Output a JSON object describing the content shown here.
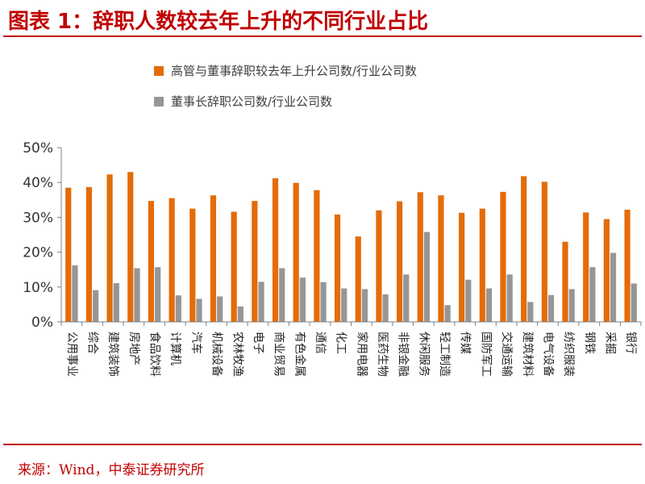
{
  "header": {
    "title": "图表 1：辞职人数较去年上升的不同行业占比"
  },
  "footer": {
    "source": "来源：Wind，中泰证券研究所"
  },
  "colors": {
    "series1": "#E36C0A",
    "series2": "#969696",
    "accent": "#C00000"
  },
  "chart_data": {
    "type": "bar",
    "title": "",
    "xlabel": "",
    "ylabel": "",
    "ylim": [
      0,
      50
    ],
    "yticks": [
      "0%",
      "10%",
      "20%",
      "30%",
      "40%",
      "50%"
    ],
    "grid": false,
    "legend": "top",
    "categories": [
      "公用事业",
      "综合",
      "建筑装饰",
      "房地产",
      "食品饮料",
      "计算机",
      "汽车",
      "机械设备",
      "农林牧渔",
      "电子",
      "商业贸易",
      "有色金属",
      "通信",
      "化工",
      "家用电器",
      "医药生物",
      "非银金融",
      "休闲服务",
      "轻工制造",
      "传媒",
      "国防军工",
      "交通运输",
      "建筑材料",
      "电气设备",
      "纺织服装",
      "钢铁",
      "采掘",
      "银行"
    ],
    "series": [
      {
        "name": "高管与董事辞职较去年上升公司数/行业公司数",
        "values": [
          38.5,
          38.7,
          42.3,
          43.0,
          34.7,
          35.5,
          32.5,
          36.3,
          31.6,
          34.7,
          41.2,
          39.9,
          37.8,
          30.8,
          24.5,
          32.0,
          34.6,
          37.2,
          36.3,
          31.3,
          32.5,
          37.3,
          41.8,
          40.2,
          23.0,
          31.4,
          29.5,
          32.2
        ]
      },
      {
        "name": "董事长辞职公司数/行业公司数",
        "values": [
          16.2,
          9.1,
          11.1,
          15.4,
          15.7,
          7.6,
          6.6,
          7.3,
          4.4,
          11.5,
          15.4,
          12.7,
          11.4,
          9.6,
          9.4,
          7.9,
          13.6,
          25.8,
          4.8,
          12.1,
          9.6,
          13.6,
          5.7,
          7.7,
          9.4,
          15.7,
          19.8,
          11.0
        ]
      }
    ]
  }
}
